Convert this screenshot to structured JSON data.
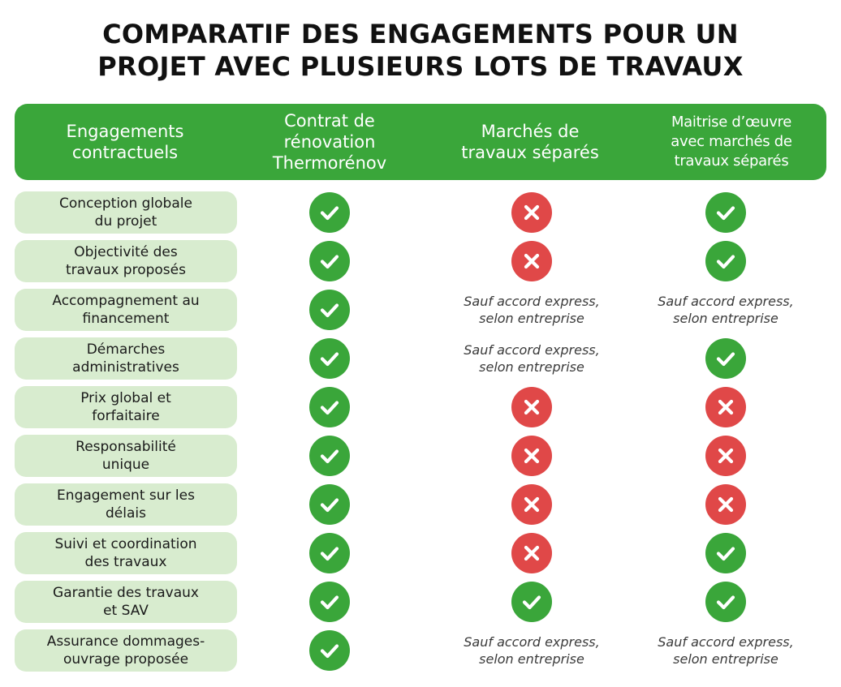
{
  "title": {
    "line1": "COMPARATIF DES ENGAGEMENTS POUR UN",
    "line2": "PROJET AVEC PLUSIEURS LOTS DE TRAVAUX"
  },
  "header": {
    "col0": [
      "Engagements",
      "contractuels"
    ],
    "col1": [
      "Contrat de",
      "rénovation",
      "Thermorénov"
    ],
    "col2": [
      "Marchés de",
      "travaux séparés"
    ],
    "col3": [
      "Maitrise d’œuvre",
      "avec marchés de",
      "travaux séparés"
    ]
  },
  "note": [
    "Sauf accord express,",
    "selon entreprise"
  ],
  "rows": [
    {
      "label": [
        "Conception globale",
        "du projet"
      ],
      "values": [
        "yes",
        "no",
        "yes"
      ]
    },
    {
      "label": [
        "Objectivité des",
        "travaux proposés"
      ],
      "values": [
        "yes",
        "no",
        "yes"
      ]
    },
    {
      "label": [
        "Accompagnement au",
        "financement"
      ],
      "values": [
        "yes",
        "note",
        "note"
      ]
    },
    {
      "label": [
        "Démarches",
        "administratives"
      ],
      "values": [
        "yes",
        "note",
        "yes"
      ]
    },
    {
      "label": [
        "Prix global et",
        "forfaitaire"
      ],
      "values": [
        "yes",
        "no",
        "no"
      ]
    },
    {
      "label": [
        "Responsabilité",
        "unique"
      ],
      "values": [
        "yes",
        "no",
        "no"
      ]
    },
    {
      "label": [
        "Engagement sur les",
        "délais"
      ],
      "values": [
        "yes",
        "no",
        "no"
      ]
    },
    {
      "label": [
        "Suivi et coordination",
        "des travaux"
      ],
      "values": [
        "yes",
        "no",
        "yes"
      ]
    },
    {
      "label": [
        "Garantie des travaux",
        "et SAV"
      ],
      "values": [
        "yes",
        "yes",
        "yes"
      ]
    },
    {
      "label": [
        "Assurance dommages-",
        "ouvrage proposée"
      ],
      "values": [
        "yes",
        "note",
        "note"
      ]
    }
  ],
  "colors": {
    "header_green": "#3aa63a",
    "label_bg": "#d8eccf",
    "check_green": "#3aa63a",
    "cross_red": "#e04848"
  },
  "icons": {
    "yes": "check-icon",
    "no": "cross-icon"
  }
}
